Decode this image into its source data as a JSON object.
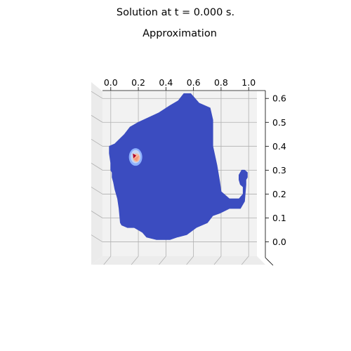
{
  "suptitle": "Solution at t = 0.000 s.",
  "chart_data": {
    "type": "surface",
    "title": "Approximation",
    "x_ticks": [
      "0.0",
      "0.2",
      "0.4",
      "0.6",
      "0.8",
      "1.0"
    ],
    "y_ticks": [
      "0.0",
      "0.1",
      "0.2",
      "0.3",
      "0.4",
      "0.5",
      "0.6"
    ],
    "xlim": [
      -0.06,
      1.06
    ],
    "ylim": [
      -0.06,
      0.63
    ],
    "view": "top-down",
    "grid": true,
    "colormap": "coolwarm",
    "background_value_color": "#3b4cc0",
    "domain_outline": [
      [
        0.0,
        0.33
      ],
      [
        0.0,
        0.3
      ],
      [
        0.01,
        0.29
      ],
      [
        0.01,
        0.27
      ],
      [
        0.02,
        0.25
      ],
      [
        0.03,
        0.22
      ],
      [
        0.05,
        0.18
      ],
      [
        0.06,
        0.14
      ],
      [
        0.07,
        0.08
      ],
      [
        0.08,
        0.07
      ],
      [
        0.12,
        0.06
      ],
      [
        0.17,
        0.06
      ],
      [
        0.23,
        0.04
      ],
      [
        0.26,
        0.02
      ],
      [
        0.33,
        0.01
      ],
      [
        0.43,
        0.01
      ],
      [
        0.48,
        0.02
      ],
      [
        0.55,
        0.03
      ],
      [
        0.62,
        0.06
      ],
      [
        0.7,
        0.08
      ],
      [
        0.74,
        0.11
      ],
      [
        0.79,
        0.12
      ],
      [
        0.86,
        0.14
      ],
      [
        0.94,
        0.14
      ],
      [
        0.97,
        0.17
      ],
      [
        0.98,
        0.24
      ],
      [
        0.98,
        0.26
      ],
      [
        0.99,
        0.27
      ],
      [
        0.99,
        0.29
      ],
      [
        0.97,
        0.3
      ],
      [
        0.95,
        0.3
      ],
      [
        0.93,
        0.28
      ],
      [
        0.93,
        0.26
      ],
      [
        0.94,
        0.24
      ],
      [
        0.96,
        0.23
      ],
      [
        0.96,
        0.2
      ],
      [
        0.93,
        0.18
      ],
      [
        0.86,
        0.18
      ],
      [
        0.8,
        0.21
      ],
      [
        0.79,
        0.25
      ],
      [
        0.77,
        0.32
      ],
      [
        0.74,
        0.4
      ],
      [
        0.74,
        0.51
      ],
      [
        0.72,
        0.56
      ],
      [
        0.64,
        0.58
      ],
      [
        0.58,
        0.62
      ],
      [
        0.53,
        0.62
      ],
      [
        0.49,
        0.59
      ],
      [
        0.43,
        0.57
      ],
      [
        0.35,
        0.54
      ],
      [
        0.2,
        0.5
      ],
      [
        0.14,
        0.48
      ],
      [
        0.1,
        0.45
      ],
      [
        0.03,
        0.41
      ],
      [
        -0.01,
        0.4
      ],
      [
        -0.01,
        0.37
      ],
      [
        0.0,
        0.33
      ]
    ],
    "hotspot": {
      "x": 0.18,
      "y": 0.355,
      "colors": [
        "#b40426",
        "#f4987a",
        "#f7b89c",
        "#c5d6f2",
        "#8db0fe"
      ]
    }
  }
}
